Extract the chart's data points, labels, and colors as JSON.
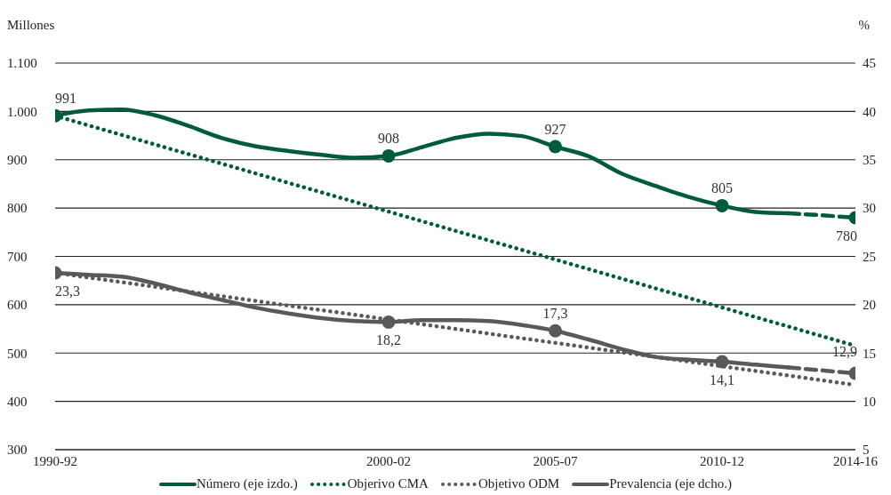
{
  "chart_data": {
    "type": "line",
    "ylabel": "Millones",
    "y2label": "%",
    "categories": [
      "1990-92",
      null,
      null,
      null,
      null,
      null,
      null,
      null,
      null,
      null,
      "2000-02",
      null,
      null,
      null,
      null,
      "2005-07",
      null,
      null,
      null,
      null,
      "2010-12",
      null,
      null,
      null,
      "2014-16"
    ],
    "ylim": [
      300,
      1100
    ],
    "yticks": [
      300,
      400,
      500,
      600,
      700,
      800,
      900,
      {
        "value": 1000,
        "label": "1.000"
      },
      {
        "value": 1100,
        "label": "1.100"
      }
    ],
    "y2lim": [
      5,
      45
    ],
    "y2ticks": [
      5,
      10,
      15,
      20,
      25,
      30,
      35,
      40,
      45
    ],
    "grid": "y",
    "legend": "bottom",
    "series": [
      {
        "name": "Número (eje izdo.)",
        "color": "#005a3c",
        "line_style": "solid",
        "values": [
          991,
          1002,
          1004,
          992,
          970,
          945,
          928,
          918,
          910,
          904,
          908,
          926,
          945,
          954,
          949,
          927,
          907,
          871,
          846,
          823,
          805,
          792,
          789,
          null,
          null
        ],
        "value_labels": [
          "991",
          null,
          null,
          null,
          null,
          null,
          null,
          null,
          null,
          null,
          "908",
          null,
          null,
          null,
          null,
          "927",
          null,
          null,
          null,
          null,
          "805",
          null,
          null,
          null,
          null
        ]
      },
      {
        "color": "#005a3c",
        "line_style": "dashed",
        "values": [
          null,
          null,
          null,
          null,
          null,
          null,
          null,
          null,
          null,
          null,
          null,
          null,
          null,
          null,
          null,
          null,
          null,
          null,
          null,
          null,
          null,
          null,
          789,
          785,
          780
        ],
        "value_labels": [
          null,
          null,
          null,
          null,
          null,
          null,
          null,
          null,
          null,
          null,
          null,
          null,
          null,
          null,
          null,
          null,
          null,
          null,
          null,
          null,
          null,
          null,
          null,
          null,
          "780"
        ]
      },
      {
        "name": "Objerivo CMA",
        "color": "#005a3c",
        "line_style": "dotted",
        "values": [
          991,
          null,
          null,
          null,
          null,
          null,
          null,
          null,
          null,
          null,
          null,
          null,
          null,
          null,
          null,
          null,
          null,
          null,
          null,
          null,
          null,
          null,
          null,
          null,
          515
        ]
      },
      {
        "name": "Objetivo ODM",
        "color": "#58595b",
        "line_style": "dotted",
        "axis": "y2",
        "values": [
          23.3,
          null,
          null,
          null,
          null,
          null,
          null,
          null,
          null,
          null,
          null,
          null,
          null,
          null,
          null,
          null,
          null,
          null,
          null,
          null,
          null,
          null,
          null,
          null,
          11.7
        ]
      },
      {
        "name": "Prevalencia (eje dcho.)",
        "color": "#58595b",
        "line_style": "solid",
        "axis": "y2",
        "values": [
          23.3,
          23.1,
          22.9,
          22.2,
          21.3,
          20.5,
          19.7,
          19.1,
          18.6,
          18.3,
          18.2,
          18.4,
          18.4,
          18.3,
          17.9,
          17.3,
          16.4,
          15.4,
          14.6,
          14.3,
          14.1,
          13.8,
          13.5,
          null,
          null
        ],
        "value_labels": [
          "23,3",
          null,
          null,
          null,
          null,
          null,
          null,
          null,
          null,
          null,
          "18,2",
          null,
          null,
          null,
          null,
          "17,3",
          null,
          null,
          null,
          null,
          "14,1",
          null,
          null,
          null,
          null
        ]
      },
      {
        "color": "#58595b",
        "line_style": "dashed",
        "axis": "y2",
        "values": [
          null,
          null,
          null,
          null,
          null,
          null,
          null,
          null,
          null,
          null,
          null,
          null,
          null,
          null,
          null,
          null,
          null,
          null,
          null,
          null,
          null,
          null,
          13.5,
          13.2,
          12.9
        ],
        "value_labels": [
          null,
          null,
          null,
          null,
          null,
          null,
          null,
          null,
          null,
          null,
          null,
          null,
          null,
          null,
          null,
          null,
          null,
          null,
          null,
          null,
          null,
          null,
          null,
          null,
          "12,9"
        ]
      }
    ]
  }
}
